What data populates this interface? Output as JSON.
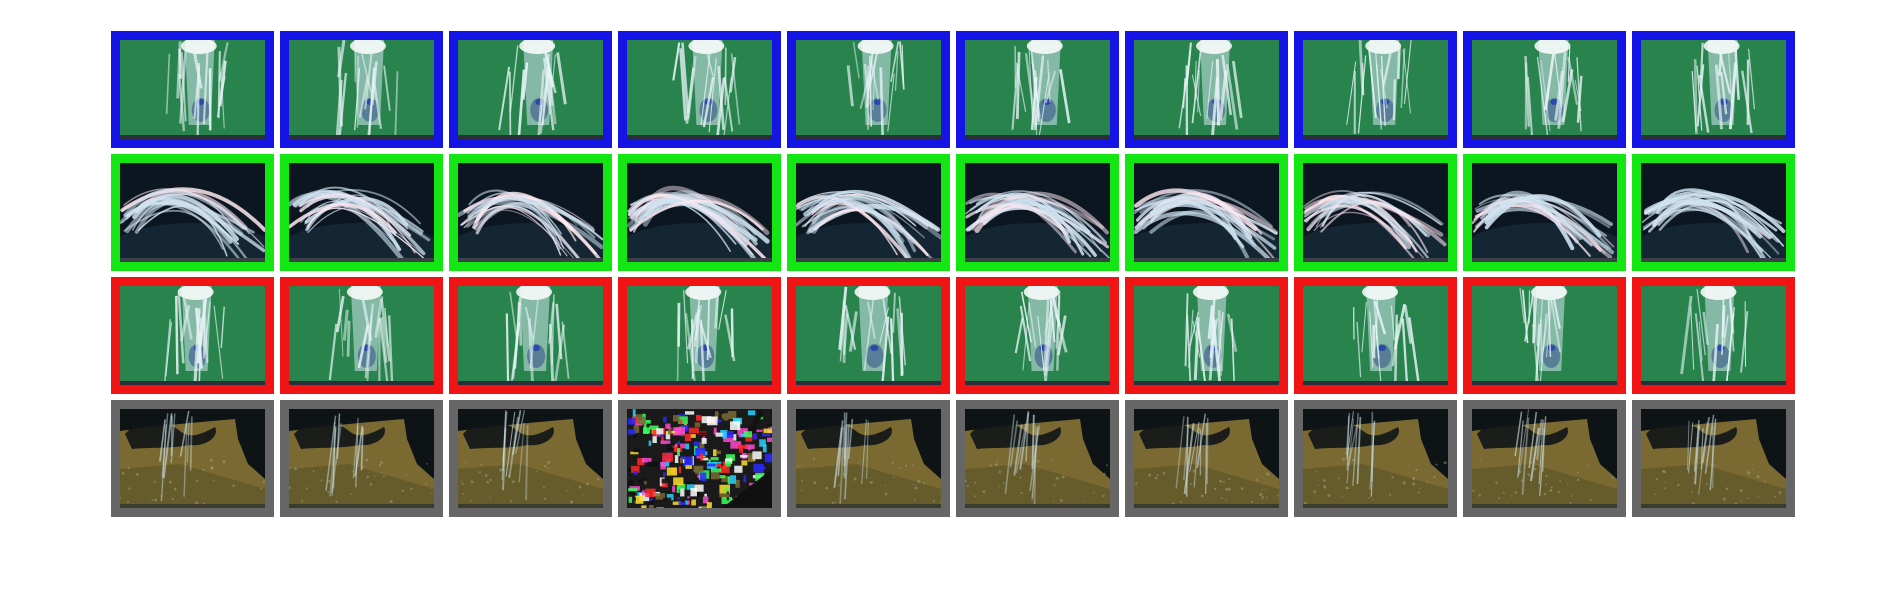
{
  "grid": {
    "rows": [
      {
        "border_color": "#1414e6",
        "scene": "fountain-column-green",
        "frames": [
          {
            "corrupted": false
          },
          {
            "corrupted": false
          },
          {
            "corrupted": false
          },
          {
            "corrupted": false
          },
          {
            "corrupted": false
          },
          {
            "corrupted": false
          },
          {
            "corrupted": false
          },
          {
            "corrupted": false
          },
          {
            "corrupted": false
          },
          {
            "corrupted": false
          }
        ]
      },
      {
        "border_color": "#14e614",
        "scene": "water-arc-dark",
        "frames": [
          {
            "corrupted": false
          },
          {
            "corrupted": false
          },
          {
            "corrupted": false
          },
          {
            "corrupted": false
          },
          {
            "corrupted": false
          },
          {
            "corrupted": false
          },
          {
            "corrupted": false
          },
          {
            "corrupted": false
          },
          {
            "corrupted": false
          },
          {
            "corrupted": false
          }
        ]
      },
      {
        "border_color": "#f01414",
        "scene": "fountain-column-green",
        "frames": [
          {
            "corrupted": false
          },
          {
            "corrupted": false
          },
          {
            "corrupted": false
          },
          {
            "corrupted": false
          },
          {
            "corrupted": false
          },
          {
            "corrupted": false
          },
          {
            "corrupted": false
          },
          {
            "corrupted": false
          },
          {
            "corrupted": false
          },
          {
            "corrupted": false
          }
        ]
      },
      {
        "border_color": "#666666",
        "scene": "water-over-ground-shadow",
        "frames": [
          {
            "corrupted": false
          },
          {
            "corrupted": false
          },
          {
            "corrupted": false
          },
          {
            "corrupted": true
          },
          {
            "corrupted": false
          },
          {
            "corrupted": false
          },
          {
            "corrupted": false
          },
          {
            "corrupted": false
          },
          {
            "corrupted": false
          },
          {
            "corrupted": false
          }
        ]
      }
    ]
  }
}
